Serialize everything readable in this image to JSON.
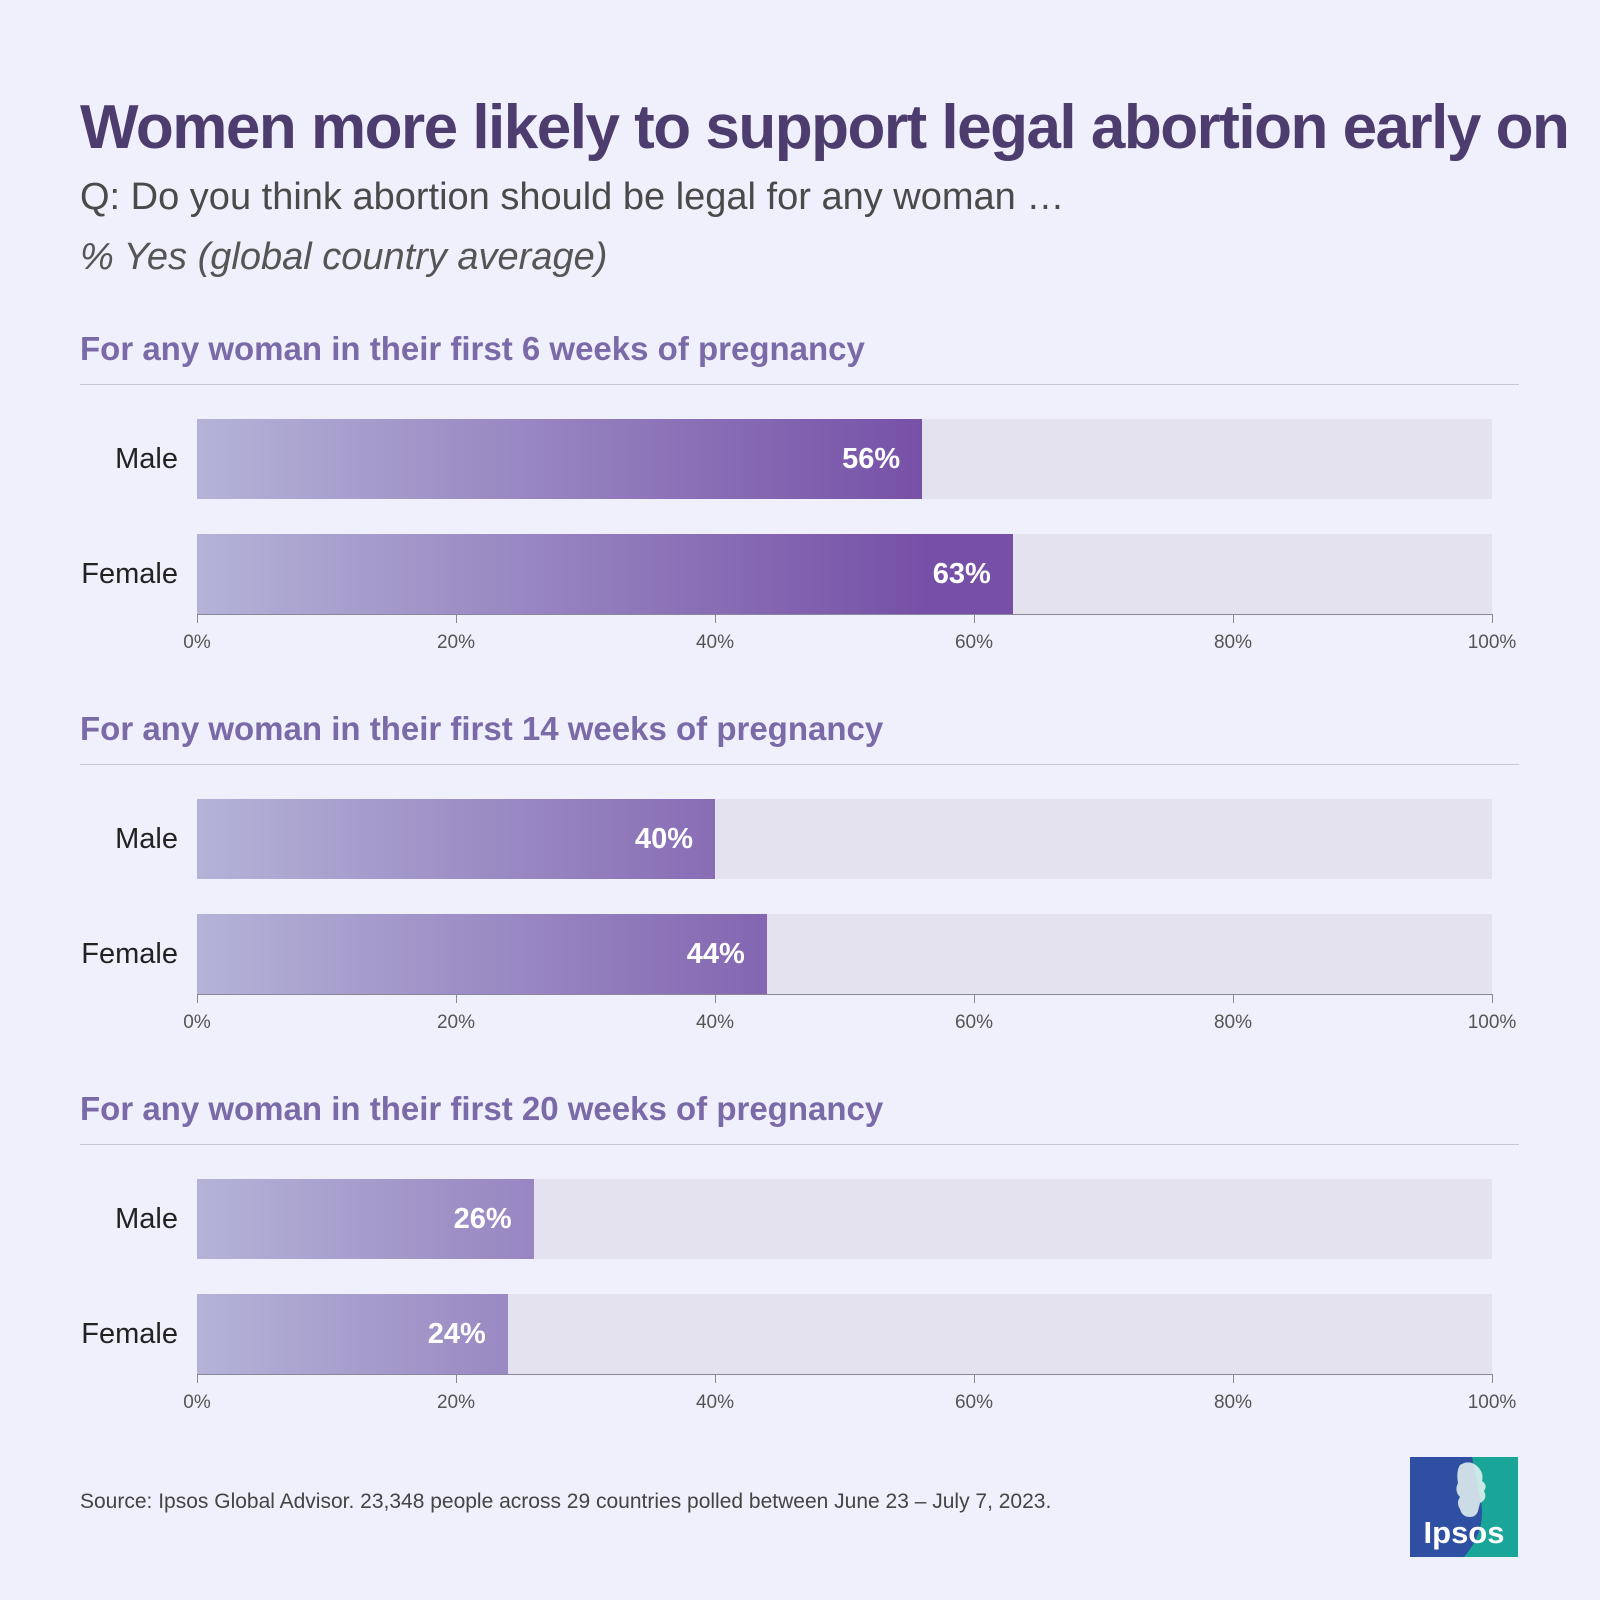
{
  "title": "Women more likely to support legal abortion early on",
  "subtitle": "Q: Do you think abortion should be legal for any woman …",
  "unit_note": "% Yes (global country average)",
  "source": "Source: Ipsos Global Advisor. 23,348 people across 29 countries polled between June 23 – July 7, 2023.",
  "logo_text": "Ipsos",
  "colors": {
    "background": "#f0effc",
    "title": "#4d3d6f",
    "panel_title": "#7a6aa8",
    "bar_start": "#b4b3d7",
    "bar_end": "#7650a7",
    "track": "#e3e2ee",
    "logo_blue": "#2f4fa2",
    "logo_teal": "#19a698"
  },
  "chart_data": [
    {
      "type": "bar",
      "orientation": "horizontal",
      "title": "For any woman in their first 6 weeks of pregnancy",
      "categories": [
        "Male",
        "Female"
      ],
      "values": [
        56,
        63
      ],
      "value_labels": [
        "56%",
        "63%"
      ],
      "xlim": [
        0,
        100
      ],
      "ticks": [
        "0%",
        "20%",
        "40%",
        "60%",
        "80%",
        "100%"
      ],
      "grid": false
    },
    {
      "type": "bar",
      "orientation": "horizontal",
      "title": "For any woman in their first 14 weeks of pregnancy",
      "categories": [
        "Male",
        "Female"
      ],
      "values": [
        40,
        44
      ],
      "value_labels": [
        "40%",
        "44%"
      ],
      "xlim": [
        0,
        100
      ],
      "ticks": [
        "0%",
        "20%",
        "40%",
        "60%",
        "80%",
        "100%"
      ],
      "grid": false
    },
    {
      "type": "bar",
      "orientation": "horizontal",
      "title": "For any woman in their first 20 weeks of pregnancy",
      "categories": [
        "Male",
        "Female"
      ],
      "values": [
        26,
        24
      ],
      "value_labels": [
        "26%",
        "24%"
      ],
      "xlim": [
        0,
        100
      ],
      "ticks": [
        "0%",
        "20%",
        "40%",
        "60%",
        "80%",
        "100%"
      ],
      "grid": false
    }
  ]
}
